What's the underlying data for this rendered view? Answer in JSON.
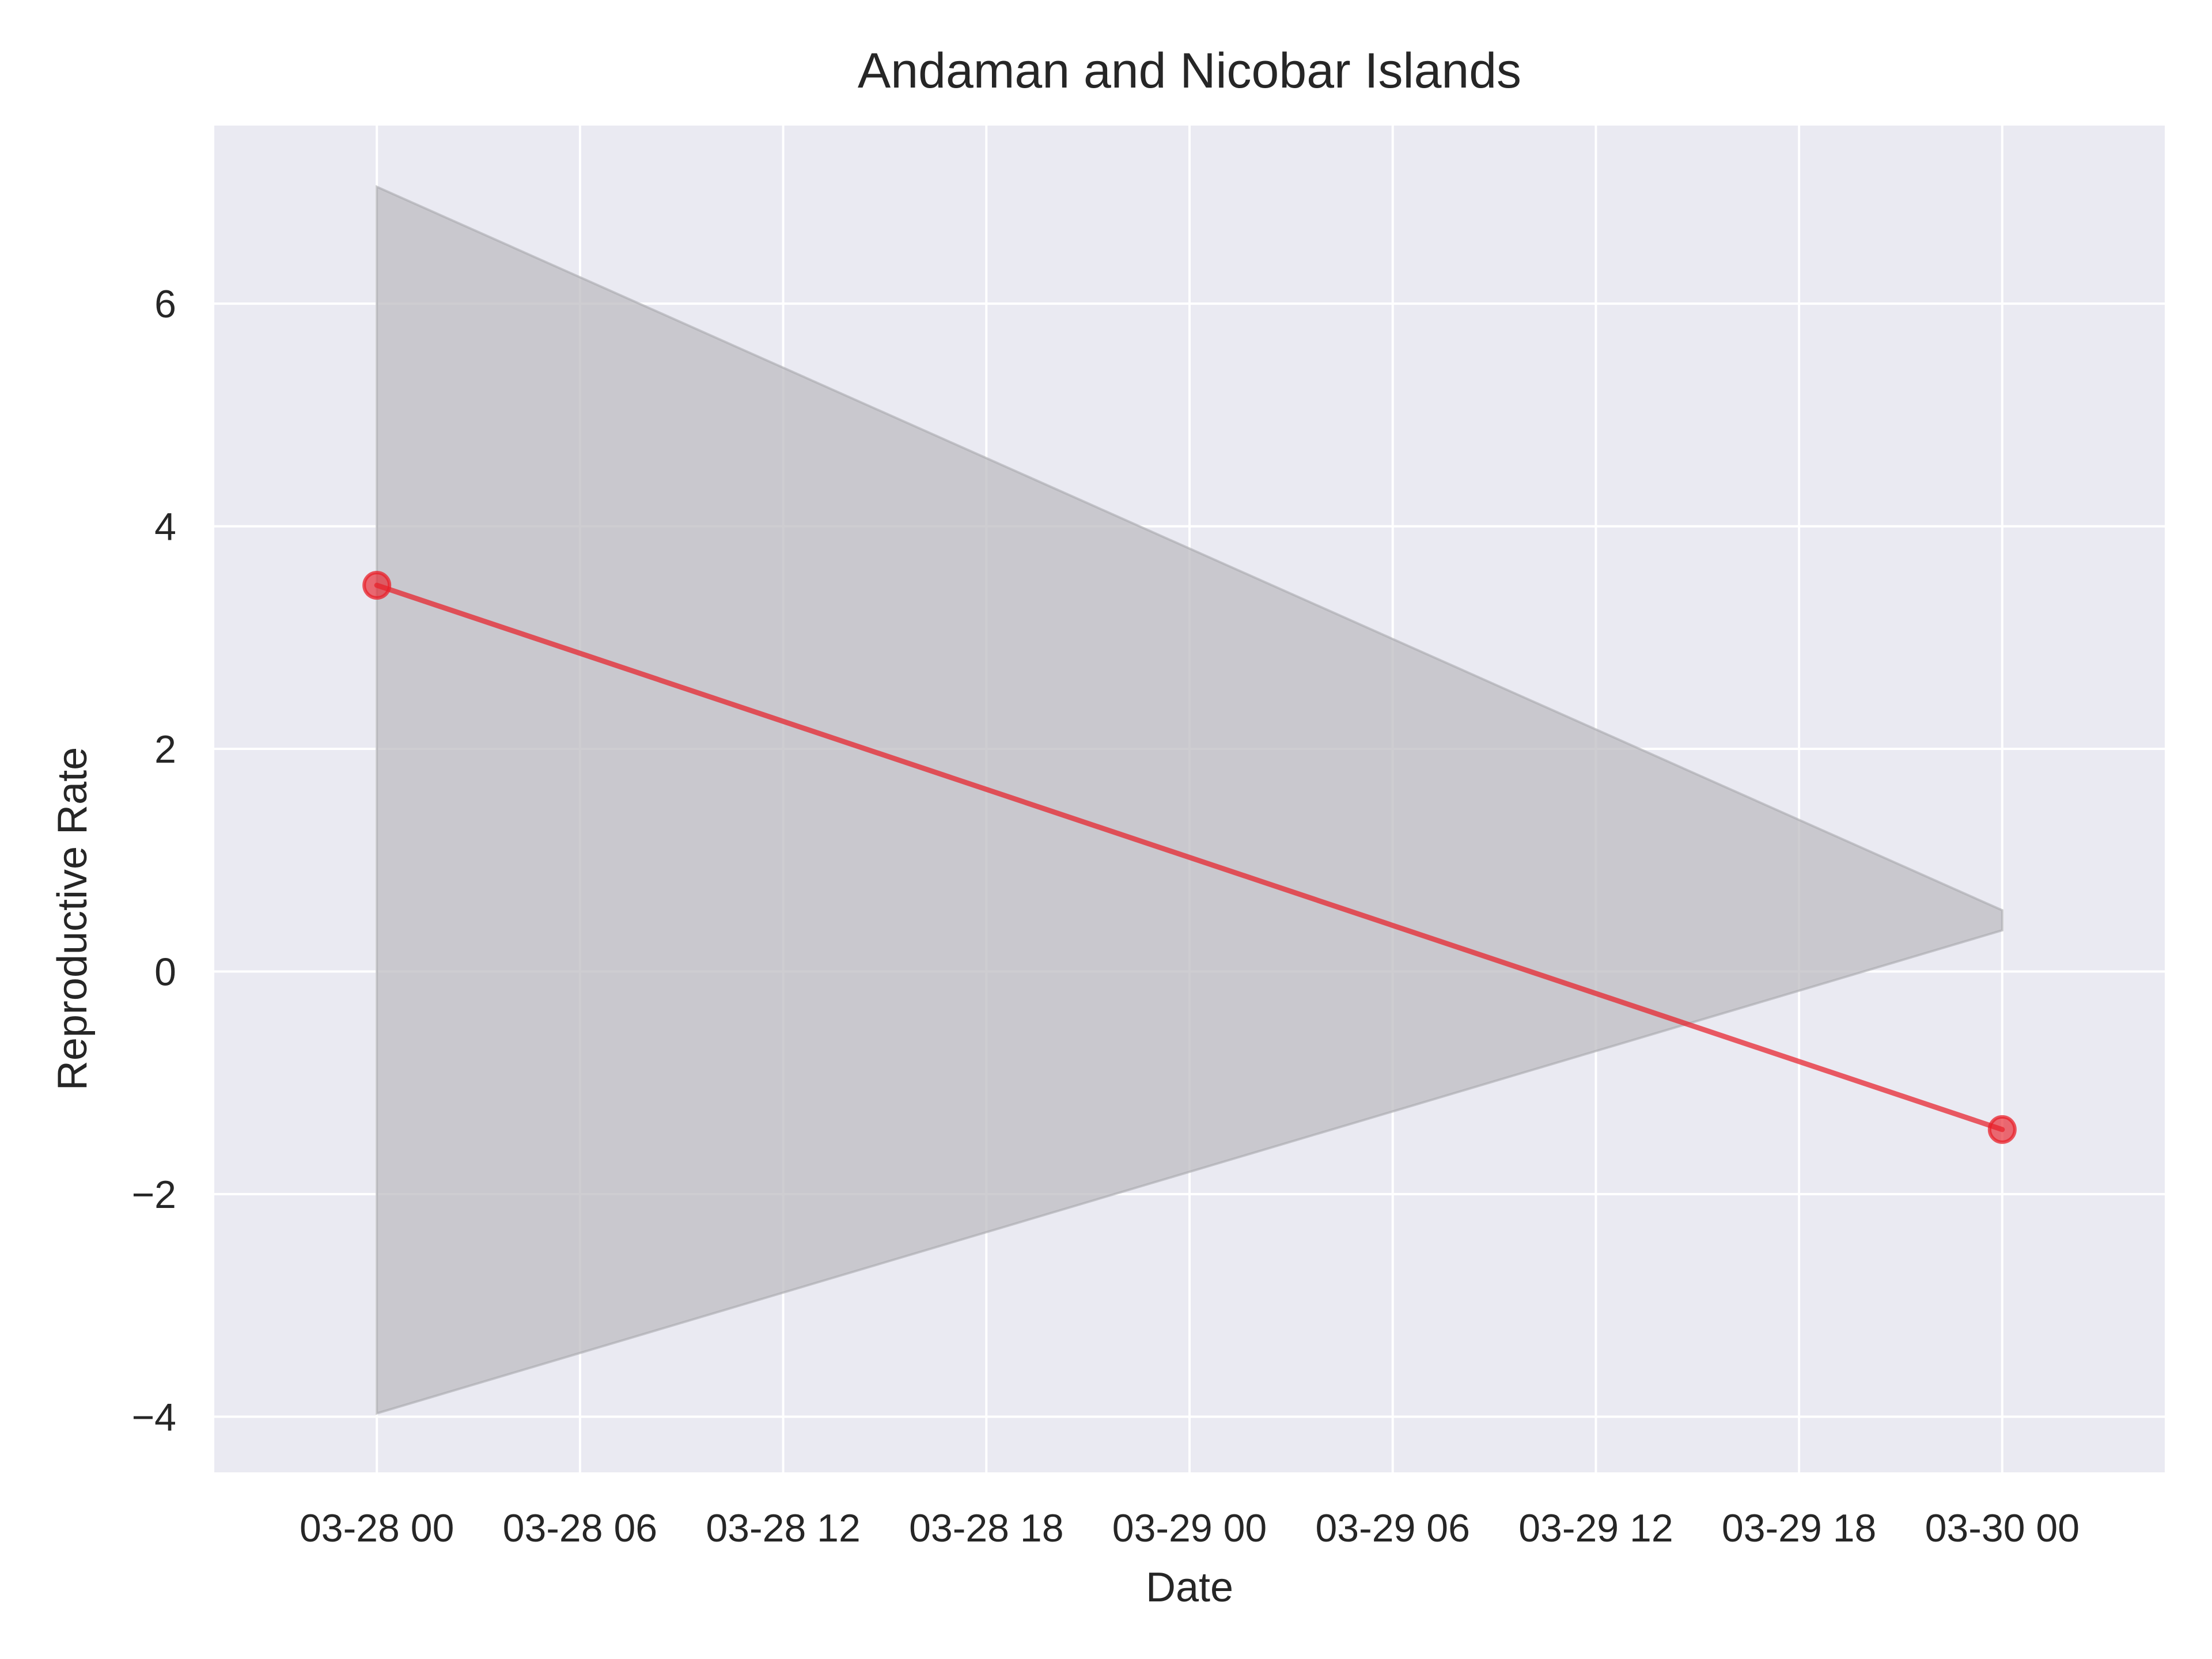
{
  "chart_data": {
    "type": "line",
    "title": "Andaman and Nicobar Islands",
    "xlabel": "Date",
    "ylabel": "Reproductive Rate",
    "x_tick_labels": [
      "03-28 00",
      "03-28 06",
      "03-28 12",
      "03-28 18",
      "03-29 00",
      "03-29 06",
      "03-29 12",
      "03-29 18",
      "03-30 00"
    ],
    "y_ticks": [
      -4,
      -2,
      0,
      2,
      4,
      6
    ],
    "y_tick_labels": [
      "−4",
      "−2",
      "0",
      "2",
      "4",
      "6"
    ],
    "xlim": [
      "2020-03-27T19:12",
      "2020-03-30T04:48"
    ],
    "ylim": [
      -4.5,
      7.6
    ],
    "grid": true,
    "series": [
      {
        "x": [
          "2020-03-28T00:00",
          "2020-03-30T00:00"
        ],
        "y": [
          3.47,
          -1.42
        ],
        "color": "#e8202a",
        "marker": "circle"
      }
    ],
    "confidence_band": {
      "x": [
        "2020-03-28T00:00",
        "2020-03-30T00:00"
      ],
      "lower": [
        -3.97,
        0.37
      ],
      "upper": [
        7.05,
        0.55
      ],
      "color": "#a9a8ad"
    },
    "colors": {
      "background": "#eaeaf2",
      "grid": "#ffffff",
      "line": "#e8202a",
      "band": "#bdbcc1"
    }
  }
}
